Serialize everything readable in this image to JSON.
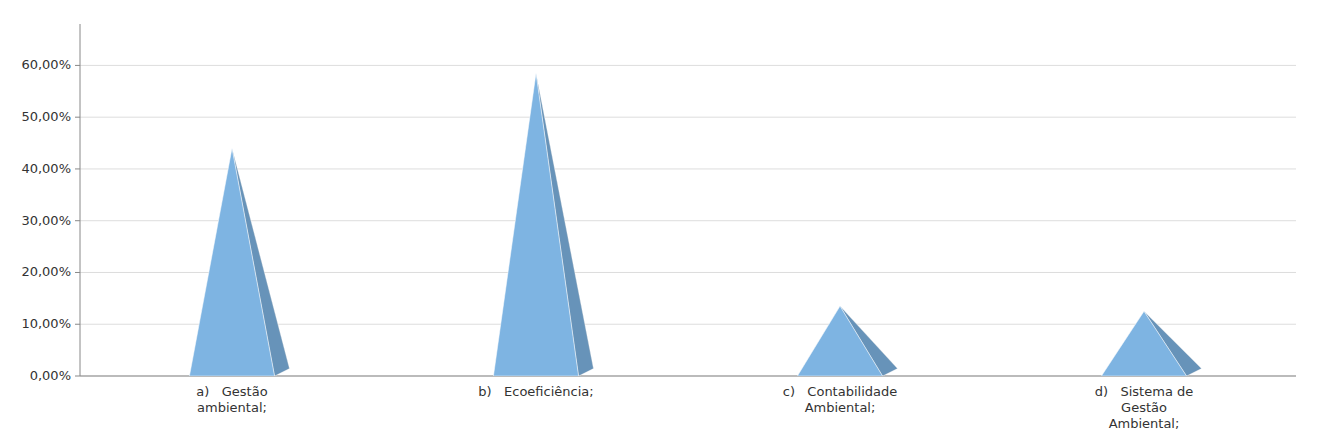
{
  "chart_data": {
    "type": "pyramid",
    "categories": [
      "a)   Gestão\nambiental;",
      "b)   Ecoeficiência;",
      "c)   Contabilidade\nAmbiental;",
      "d)   Sistema de\nGestão\nAmbiental;"
    ],
    "values": [
      0.44,
      0.585,
      0.135,
      0.125
    ],
    "color": "#7EB4E2",
    "ylim": [
      0,
      0.68
    ],
    "yticks": [
      {
        "value": 0.0,
        "label": "0,00%"
      },
      {
        "value": 0.1,
        "label": "10,00%"
      },
      {
        "value": 0.2,
        "label": "20,00%"
      },
      {
        "value": 0.3,
        "label": "30,00%"
      },
      {
        "value": 0.4,
        "label": "40,00%"
      },
      {
        "value": 0.5,
        "label": "50,00%"
      },
      {
        "value": 0.6,
        "label": "60,00%"
      }
    ],
    "grid": true
  }
}
